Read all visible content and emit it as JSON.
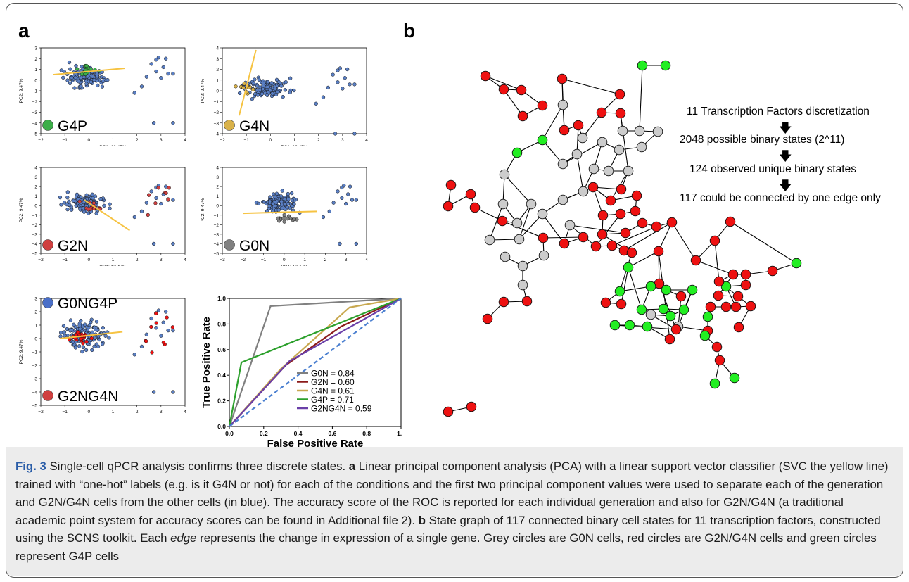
{
  "panel_labels": {
    "a": "a",
    "b": "b"
  },
  "pca_plots": [
    {
      "label": "G4P",
      "color": "#3cae49",
      "xlabel": "PC1: 13.47%",
      "ylabel": "PC2: 9.47%",
      "xticks": [
        "−2",
        "−1",
        "0",
        "1",
        "2",
        "3",
        "4"
      ],
      "yticks": [
        "3",
        "2",
        "1",
        "0",
        "−1",
        "−2",
        "−3",
        "−4",
        "−5"
      ]
    },
    {
      "label": "G4N",
      "color": "#d9b24a",
      "xlabel": "PC1: 13.47%",
      "ylabel": "PC2: 9.47%",
      "xticks": [
        "−2",
        "−1",
        "0",
        "1",
        "2",
        "3",
        "4"
      ],
      "yticks": [
        "4",
        "3",
        "2",
        "1",
        "0",
        "−1",
        "−2",
        "−3",
        "−4"
      ]
    },
    {
      "label": "G2N",
      "color": "#d04040",
      "xlabel": "PC1: 13.47%",
      "ylabel": "PC2: 9.47%",
      "xticks": [
        "−2",
        "−1",
        "0",
        "1",
        "2",
        "3",
        "4"
      ],
      "yticks": [
        "4",
        "3",
        "2",
        "1",
        "0",
        "−1",
        "−2",
        "−3",
        "−4",
        "−5"
      ]
    },
    {
      "label": "G0N",
      "color": "#808080",
      "xlabel": "PC1: 13.47%",
      "ylabel": "PC2: 9.47%",
      "xticks": [
        "−3",
        "−2",
        "−1",
        "0",
        "1",
        "2",
        "3",
        "4"
      ],
      "yticks": [
        "4",
        "3",
        "2",
        "1",
        "0",
        "−1",
        "−2",
        "−3",
        "−4",
        "−5"
      ]
    },
    {
      "label": "G0NG4P",
      "label2": "G2NG4N",
      "color": "#4a6fc8",
      "color2": "#d04040",
      "xlabel": "PC1: 13.47%",
      "ylabel": "PC2: 9.47%",
      "xticks": [
        "−2",
        "−1",
        "0",
        "1",
        "2",
        "3",
        "4"
      ],
      "yticks": [
        "3",
        "2",
        "1",
        "0",
        "−1",
        "−2",
        "−3",
        "−4",
        "−5"
      ]
    }
  ],
  "chart_data": {
    "type": "line",
    "xlabel": "False Positive Rate",
    "ylabel": "True Positive Rate",
    "xlim": [
      0,
      1
    ],
    "ylim": [
      0,
      1
    ],
    "xticks": [
      "0.0",
      "0.2",
      "0.4",
      "0.6",
      "0.8",
      "1.0"
    ],
    "yticks": [
      "0.0",
      "0.2",
      "0.4",
      "0.6",
      "0.8",
      "1.0"
    ],
    "legend_position": "bottom-right",
    "series": [
      {
        "name": "G0N = 0.84",
        "color": "#808080",
        "x": [
          0,
          0.24,
          1.0
        ],
        "y": [
          0,
          0.94,
          1.0
        ]
      },
      {
        "name": "G2N = 0.60",
        "color": "#8b1a1a",
        "x": [
          0,
          0.33,
          0.65,
          1.0
        ],
        "y": [
          0,
          0.48,
          0.78,
          1.0
        ]
      },
      {
        "name": "G4N = 0.61",
        "color": "#c8a850",
        "x": [
          0,
          0.3,
          0.7,
          1.0
        ],
        "y": [
          0,
          0.45,
          0.93,
          1.0
        ]
      },
      {
        "name": "G4P = 0.71",
        "color": "#2ca02c",
        "x": [
          0,
          0.07,
          1.0
        ],
        "y": [
          0,
          0.5,
          1.0
        ]
      },
      {
        "name": "G2NG4N = 0.59",
        "color": "#6a3fa8",
        "x": [
          0,
          0.35,
          1.0
        ],
        "y": [
          0,
          0.51,
          1.0
        ]
      },
      {
        "name": "",
        "color": "#4a7fd0",
        "dashed": true,
        "x": [
          0,
          1.0
        ],
        "y": [
          0,
          1.0
        ]
      }
    ]
  },
  "flow": {
    "steps": [
      "11 Transcription Factors discretization",
      "2048 possible binary states (2^11)",
      "124 observed unique binary states",
      "117 could be connected by one edge only"
    ]
  },
  "caption": {
    "fig": "Fig. 3",
    "title": " Single-cell qPCR analysis confirms three discrete states. ",
    "a_label": "a",
    "a_text": " Linear principal component analysis (PCA) with a linear support vector classifier (SVC the yellow line) trained with “one-hot” labels (e.g. is it G4N or not) for each of the conditions and the first two principal component values were used to separate each of the generation and G2N/G4N cells from the other cells (in blue). The accuracy score of the ROC is reported for each individual generation and also for G2N/G4N (a traditional academic point system for accuracy scores can be found in Additional file 2). ",
    "b_label": "b",
    "b_text_1": " State graph of 117 connected binary cell states for 11 transcription factors, constructed using the SCNS toolkit. Each ",
    "b_edge": "edge",
    "b_text_2": " represents the change in expression of a single gene. Grey circles are G0N cells, red circles are G2N/G4N cells and green circles represent G4P cells"
  },
  "colors": {
    "red": "#ee1111",
    "grey": "#cccccc",
    "green": "#22ee22",
    "blue": "#5a7fc4",
    "yellow": "#f6c342"
  }
}
